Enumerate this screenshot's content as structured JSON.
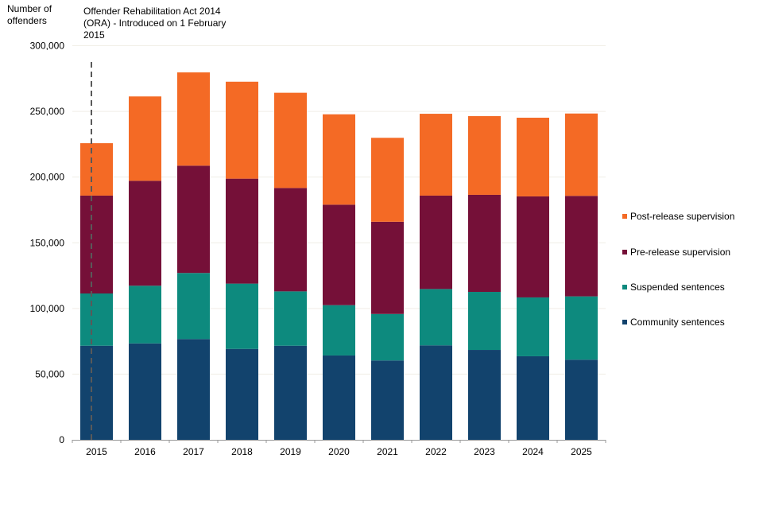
{
  "chart_data": {
    "type": "bar",
    "stacked": true,
    "title": "",
    "xlabel": "",
    "ylabel": "Number of offenders",
    "ylim": [
      0,
      300000
    ],
    "yticks": [
      0,
      50000,
      100000,
      150000,
      200000,
      250000,
      300000
    ],
    "ytick_labels": [
      "0",
      "50,000",
      "100,000",
      "150,000",
      "200,000",
      "250,000",
      "300,000"
    ],
    "grid": true,
    "legend_position": "right",
    "categories": [
      "2015",
      "2016",
      "2017",
      "2018",
      "2019",
      "2020",
      "2021",
      "2022",
      "2023",
      "2024",
      "2025"
    ],
    "series": [
      {
        "name": "Community sentences",
        "color": "#12436D",
        "values": [
          71600,
          73400,
          76700,
          69200,
          71600,
          64200,
          60400,
          71900,
          68400,
          63600,
          61000
        ]
      },
      {
        "name": "Suspended sentences",
        "color": "#0D8A7E",
        "values": [
          39800,
          43900,
          50300,
          49700,
          41400,
          38300,
          35400,
          42900,
          44200,
          44800,
          48200
        ]
      },
      {
        "name": "Pre-release supervision",
        "color": "#751038",
        "values": [
          74500,
          79900,
          81700,
          79900,
          78700,
          76500,
          70200,
          71100,
          73900,
          76900,
          76500
        ]
      },
      {
        "name": "Post-release supervision",
        "color": "#F46A25",
        "values": [
          39900,
          64200,
          71000,
          73800,
          72500,
          68800,
          63900,
          62300,
          59900,
          59900,
          62700
        ]
      }
    ],
    "legend_order": [
      "Post-release supervision",
      "Pre-release supervision",
      "Suspended sentences",
      "Community sentences"
    ],
    "annotations": [
      {
        "text": "Offender Rehabilitation Act 2014 (ORA) - Introduced on 1 February 2015",
        "type": "vertical-dashed-line",
        "at_category": "2015",
        "line_color": "#595959"
      }
    ]
  },
  "labels": {
    "ylabel_line1": "Number of",
    "ylabel_line2": "offenders",
    "annotation_line1": "Offender Rehabilitation Act 2014",
    "annotation_line2": "(ORA) - Introduced on 1 February",
    "annotation_line3": "2015"
  },
  "colors": {
    "gridline": "#F0EEE6",
    "axis": "#999999"
  }
}
